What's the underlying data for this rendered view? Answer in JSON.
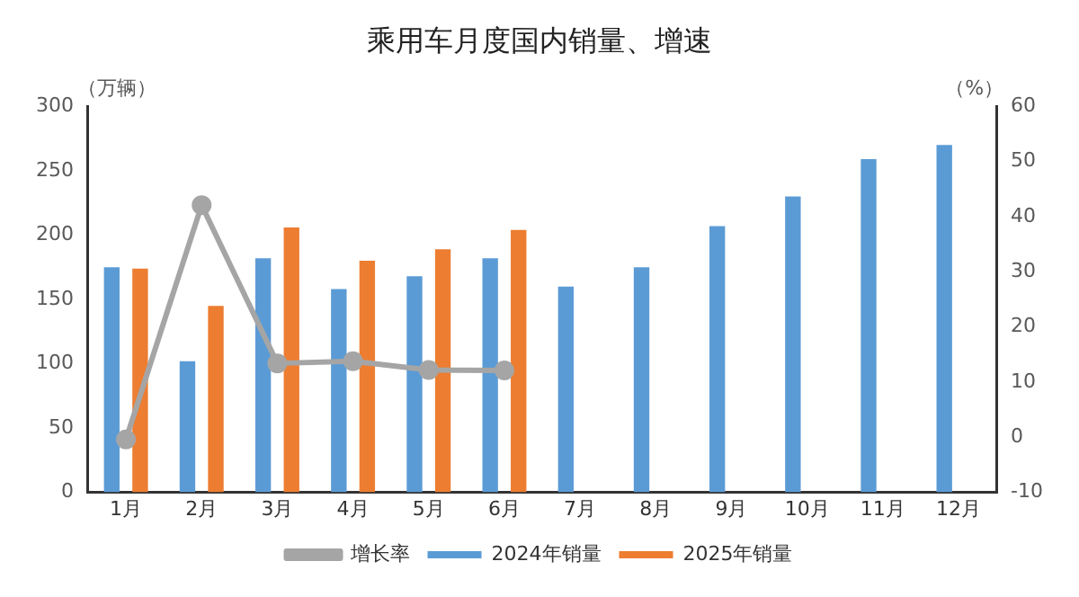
{
  "chart_data": {
    "type": "bar",
    "title": "乘用车月度国内销量、增速",
    "ylabel": "（万辆）",
    "y2label": "（%）",
    "categories": [
      "1月",
      "2月",
      "3月",
      "4月",
      "5月",
      "6月",
      "7月",
      "8月",
      "9月",
      "10月",
      "11月",
      "12月"
    ],
    "series": [
      {
        "name": "2024年销量",
        "color": "#5b9bd5",
        "values": [
          175,
          102,
          182,
          158,
          168,
          182,
          160,
          175,
          207,
          230,
          259,
          270
        ]
      },
      {
        "name": "2025年销量",
        "color": "#ed7d31",
        "values": [
          174,
          145,
          206,
          180,
          189,
          204,
          null,
          null,
          null,
          null,
          null,
          null
        ]
      },
      {
        "name": "增长率",
        "type": "line",
        "axis": "y2",
        "color": "#a5a5a5",
        "marker": "circle",
        "values": [
          -0.4,
          42.1,
          13.4,
          13.8,
          12.2,
          12.1,
          null,
          null,
          null,
          null,
          null,
          null
        ]
      }
    ],
    "ylim": [
      0,
      300
    ],
    "yticks": [
      0,
      50,
      100,
      150,
      200,
      250,
      300
    ],
    "y2lim": [
      -10,
      60
    ],
    "y2ticks": [
      -10,
      0,
      10,
      20,
      30,
      40,
      50,
      60
    ],
    "grid": false,
    "legend": "bottom"
  }
}
